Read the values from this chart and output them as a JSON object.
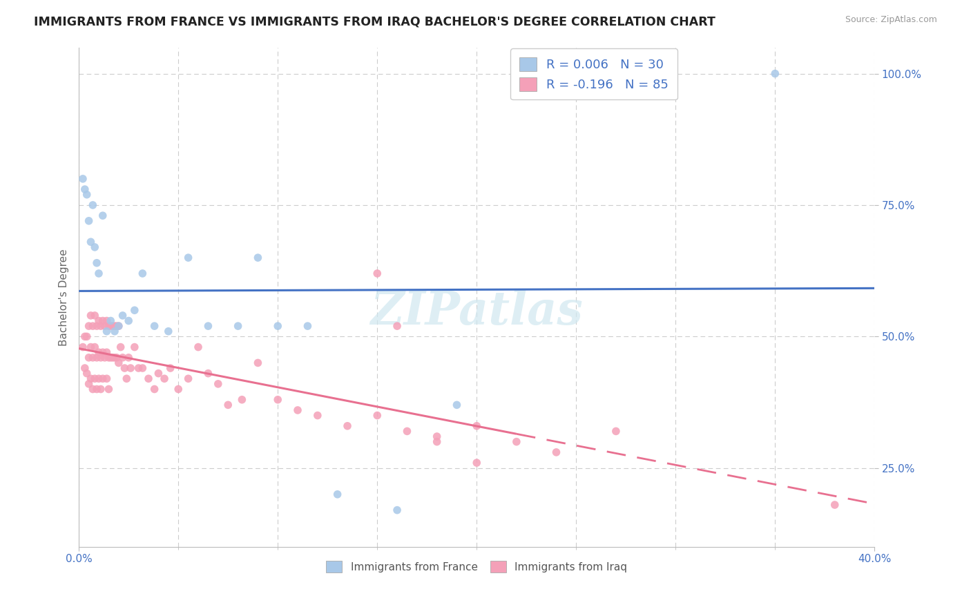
{
  "title": "IMMIGRANTS FROM FRANCE VS IMMIGRANTS FROM IRAQ BACHELOR'S DEGREE CORRELATION CHART",
  "source": "Source: ZipAtlas.com",
  "xlim": [
    0.0,
    0.4
  ],
  "ylim": [
    0.1,
    1.05
  ],
  "france_color": "#a8c8e8",
  "iraq_color": "#f4a0b8",
  "france_line_color": "#4472c4",
  "iraq_line_color": "#e87090",
  "france_R": "0.006",
  "france_N": "30",
  "iraq_R": "-0.196",
  "iraq_N": "85",
  "legend_color": "#4472c4",
  "legend_text_color": "#333333",
  "watermark_color": "#d0e8f0",
  "france_scatter_x": [
    0.002,
    0.003,
    0.004,
    0.005,
    0.006,
    0.007,
    0.008,
    0.009,
    0.01,
    0.012,
    0.014,
    0.016,
    0.018,
    0.02,
    0.022,
    0.025,
    0.028,
    0.032,
    0.038,
    0.045,
    0.055,
    0.065,
    0.08,
    0.09,
    0.1,
    0.115,
    0.13,
    0.16,
    0.19,
    0.35
  ],
  "france_scatter_y": [
    0.8,
    0.78,
    0.77,
    0.72,
    0.68,
    0.75,
    0.67,
    0.64,
    0.62,
    0.73,
    0.51,
    0.53,
    0.51,
    0.52,
    0.54,
    0.53,
    0.55,
    0.62,
    0.52,
    0.51,
    0.65,
    0.52,
    0.52,
    0.65,
    0.52,
    0.52,
    0.2,
    0.17,
    0.37,
    1.0
  ],
  "iraq_scatter_x": [
    0.002,
    0.003,
    0.003,
    0.004,
    0.004,
    0.005,
    0.005,
    0.005,
    0.006,
    0.006,
    0.006,
    0.007,
    0.007,
    0.007,
    0.008,
    0.008,
    0.008,
    0.009,
    0.009,
    0.009,
    0.01,
    0.01,
    0.01,
    0.011,
    0.011,
    0.011,
    0.012,
    0.012,
    0.012,
    0.013,
    0.013,
    0.014,
    0.014,
    0.014,
    0.015,
    0.015,
    0.015,
    0.016,
    0.016,
    0.017,
    0.017,
    0.018,
    0.018,
    0.019,
    0.019,
    0.02,
    0.02,
    0.021,
    0.022,
    0.023,
    0.024,
    0.025,
    0.026,
    0.028,
    0.03,
    0.032,
    0.035,
    0.038,
    0.04,
    0.043,
    0.046,
    0.05,
    0.055,
    0.06,
    0.065,
    0.07,
    0.075,
    0.082,
    0.09,
    0.1,
    0.11,
    0.12,
    0.135,
    0.15,
    0.165,
    0.18,
    0.2,
    0.22,
    0.24,
    0.27,
    0.15,
    0.16,
    0.18,
    0.2,
    0.38
  ],
  "iraq_scatter_y": [
    0.48,
    0.5,
    0.44,
    0.5,
    0.43,
    0.52,
    0.46,
    0.41,
    0.54,
    0.48,
    0.42,
    0.52,
    0.46,
    0.4,
    0.54,
    0.48,
    0.42,
    0.52,
    0.46,
    0.4,
    0.53,
    0.47,
    0.42,
    0.52,
    0.46,
    0.4,
    0.53,
    0.47,
    0.42,
    0.52,
    0.46,
    0.53,
    0.47,
    0.42,
    0.52,
    0.46,
    0.4,
    0.52,
    0.46,
    0.52,
    0.46,
    0.52,
    0.46,
    0.52,
    0.46,
    0.52,
    0.45,
    0.48,
    0.46,
    0.44,
    0.42,
    0.46,
    0.44,
    0.48,
    0.44,
    0.44,
    0.42,
    0.4,
    0.43,
    0.42,
    0.44,
    0.4,
    0.42,
    0.48,
    0.43,
    0.41,
    0.37,
    0.38,
    0.45,
    0.38,
    0.36,
    0.35,
    0.33,
    0.35,
    0.32,
    0.31,
    0.33,
    0.3,
    0.28,
    0.32,
    0.62,
    0.52,
    0.3,
    0.26,
    0.18
  ],
  "background_color": "#ffffff",
  "grid_color": "#cccccc",
  "yticks": [
    0.25,
    0.5,
    0.75,
    1.0
  ],
  "ytick_labels": [
    "25.0%",
    "50.0%",
    "75.0%",
    "100.0%"
  ],
  "xtick_labels": [
    "0.0%",
    "40.0%"
  ],
  "axis_label_color": "#4472c4",
  "ylabel": "Bachelor's Degree"
}
